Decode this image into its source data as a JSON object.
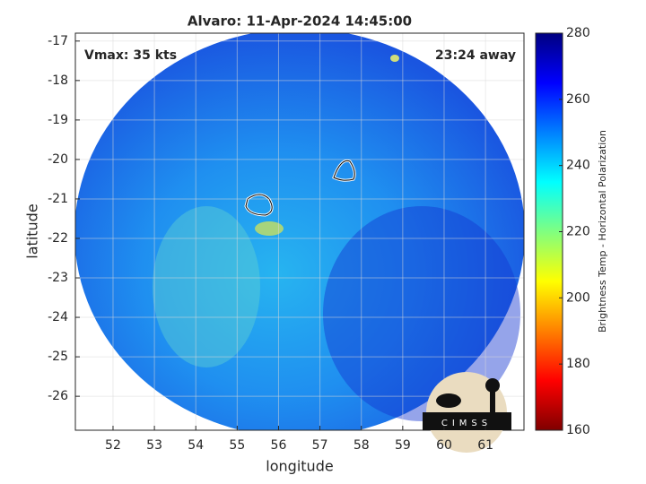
{
  "chart_data": {
    "type": "heatmap",
    "title": "Alvaro: 11-Apr-2024 14:45:00",
    "annotations": [
      "Vmax: 35 kts",
      "23:24 away"
    ],
    "xlabel": "longitude",
    "ylabel": "latitude",
    "xlim": [
      51.09,
      61.93
    ],
    "ylim": [
      -26.86,
      -16.8
    ],
    "xticks": [
      52,
      53,
      54,
      55,
      56,
      57,
      58,
      59,
      60,
      61
    ],
    "yticks": [
      -17,
      -18,
      -19,
      -20,
      -21,
      -22,
      -23,
      -24,
      -25,
      -26
    ],
    "grid": true,
    "colorbar_label": "Brightness Temp - Horizontal Polarization",
    "clim": [
      160,
      280
    ],
    "cticks": [
      160,
      180,
      200,
      220,
      240,
      260,
      280
    ],
    "colormap": [
      "#800000",
      "#ff0000",
      "#ff8000",
      "#ffff00",
      "#80ff80",
      "#00ffff",
      "#0080ff",
      "#0000ff",
      "#000080"
    ],
    "logo": "CIMSS"
  }
}
